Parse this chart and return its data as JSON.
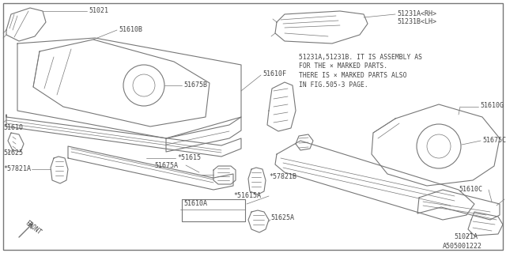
{
  "bg_color": "#ffffff",
  "line_color": "#777777",
  "text_color": "#444444",
  "diagram_id": "A505001222",
  "note_lines": [
    "51231A,51231B. IT IS ASSEMBLY AS",
    "FOR THE × MARKED PARTS.",
    "THERE IS × MARKED PARTS ALSO",
    "IN FIG.505-3 PAGE."
  ],
  "fontsize": 6.0,
  "note_fontsize": 5.8
}
